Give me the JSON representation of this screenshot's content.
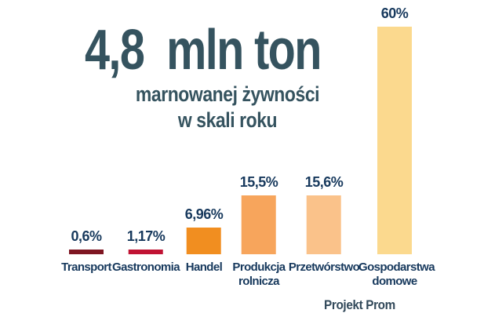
{
  "headline": {
    "number": "4,8",
    "unit": "mln ton",
    "subtitle_line1": "marnowanej żywności",
    "subtitle_line2": "w skali roku"
  },
  "credit": "Projekt Prom",
  "colors": {
    "background": "#ffffff",
    "headline_text": "#35535f",
    "label_text": "#17395d",
    "credit_text": "#32495a"
  },
  "chart_data": {
    "type": "bar",
    "title": "4,8 mln ton marnowanej żywności w skali roku",
    "categories": [
      "Transport",
      "Gastronomia",
      "Handel",
      "Produkcja rolnicza",
      "Przetwórstwo",
      "Gospodarstwa domowe"
    ],
    "values": [
      0.6,
      1.17,
      6.96,
      15.5,
      15.6,
      60
    ],
    "value_labels": [
      "0,6%",
      "1,17%",
      "6,96%",
      "15,5%",
      "15,6%",
      "60%"
    ],
    "bar_colors": [
      "#7e1622",
      "#c01333",
      "#f18e20",
      "#f7a55c",
      "#fac28a",
      "#fbd98e"
    ],
    "unit": "%",
    "xlabel": "",
    "ylabel": "",
    "ylim": [
      0,
      62
    ],
    "grid": false,
    "legend": false,
    "value_label_position": "above-bar",
    "source_credit": "Projekt Prom"
  }
}
